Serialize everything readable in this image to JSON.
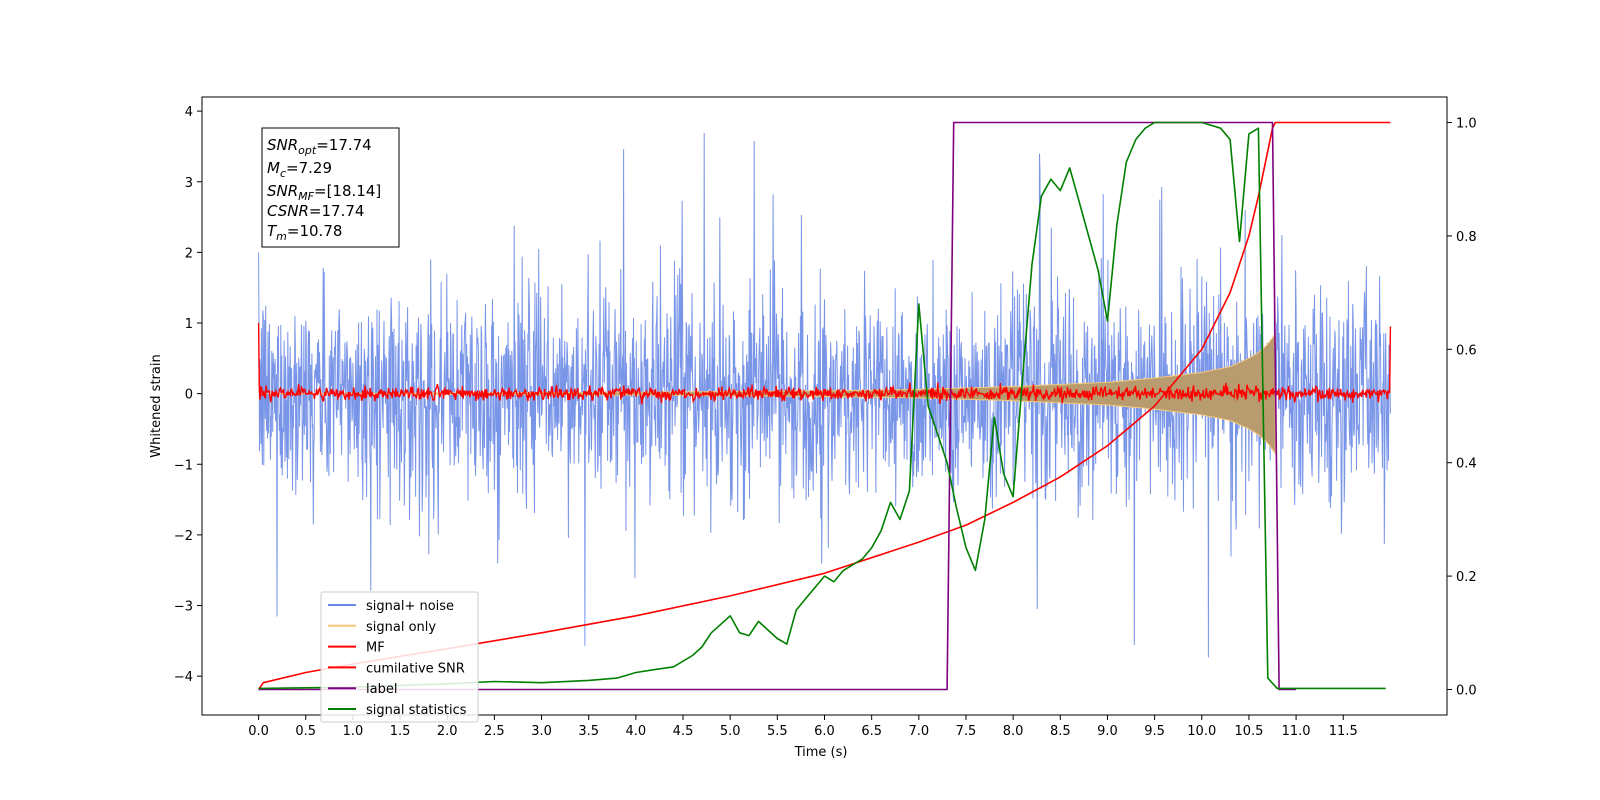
{
  "chart_data": {
    "type": "line",
    "xlabel": "Time (s)",
    "ylabel": "Whitened strain",
    "xlim": [
      -0.6,
      12.6
    ],
    "ylim": [
      -4.55,
      4.2
    ],
    "y2lim": [
      -0.045,
      1.045
    ],
    "x_ticks": [
      "0.0",
      "0.5",
      "1.0",
      "1.5",
      "2.0",
      "2.5",
      "3.0",
      "3.5",
      "4.0",
      "4.5",
      "5.0",
      "5.5",
      "6.0",
      "6.5",
      "7.0",
      "7.5",
      "8.0",
      "8.5",
      "9.0",
      "9.5",
      "10.0",
      "10.5",
      "11.0",
      "11.5"
    ],
    "y_ticks": [
      "−4",
      "−3",
      "−2",
      "−1",
      "0",
      "1",
      "2",
      "3",
      "4"
    ],
    "y2_ticks": [
      "0.0",
      "0.2",
      "0.4",
      "0.6",
      "0.8",
      "1.0"
    ],
    "annotation": {
      "snr_opt": {
        "label": "SNR",
        "sub": "opt",
        "value": "=17.74"
      },
      "mc": {
        "label": "M",
        "sub": "c",
        "value": "=7.29"
      },
      "snr_mf": {
        "label": "SNR",
        "sub": "MF",
        "value": "=[18.14]"
      },
      "csnr": {
        "label": "CSNR",
        "value": "=17.74"
      },
      "tm": {
        "label": "T",
        "sub": "m",
        "value": "=10.78"
      }
    },
    "series": [
      {
        "name": "signal+ noise",
        "color": "#6a89e6",
        "axis": "left",
        "noise_amplitude": 1.0,
        "x_range": [
          0.0,
          12.0
        ]
      },
      {
        "name": "signal only",
        "color": "#f5c97a",
        "axis": "left",
        "envelope_x": [
          0.0,
          4.0,
          6.0,
          7.0,
          8.0,
          9.0,
          9.5,
          10.0,
          10.3,
          10.5,
          10.6,
          10.7,
          10.78
        ],
        "envelope_y": [
          0.0,
          0.02,
          0.04,
          0.06,
          0.1,
          0.16,
          0.22,
          0.3,
          0.38,
          0.5,
          0.58,
          0.7,
          0.85
        ]
      },
      {
        "name": "MF",
        "color": "#ff0000",
        "axis": "left",
        "noise_amplitude": 0.08,
        "x_range": [
          0.0,
          12.0
        ]
      },
      {
        "name": "cumilative SNR",
        "color": "#ff0000",
        "axis": "right",
        "x": [
          0.0,
          0.05,
          0.5,
          1.0,
          2.0,
          3.0,
          4.0,
          5.0,
          6.0,
          7.0,
          7.5,
          8.0,
          8.5,
          9.0,
          9.5,
          10.0,
          10.3,
          10.5,
          10.6,
          10.7,
          10.75,
          10.78,
          12.0
        ],
        "y": [
          0.0,
          0.012,
          0.03,
          0.045,
          0.072,
          0.1,
          0.13,
          0.165,
          0.205,
          0.26,
          0.29,
          0.33,
          0.375,
          0.43,
          0.5,
          0.6,
          0.7,
          0.8,
          0.87,
          0.95,
          0.99,
          1.0,
          1.0
        ]
      },
      {
        "name": "label",
        "color": "#800080",
        "axis": "right",
        "x": [
          0.0,
          7.3,
          7.37,
          10.75,
          10.82,
          11.0
        ],
        "y": [
          0.0,
          0.0,
          1.0,
          1.0,
          0.0,
          0.0
        ]
      },
      {
        "name": "signal statistics",
        "color": "#008000",
        "axis": "right",
        "x": [
          0.0,
          1.0,
          2.0,
          2.5,
          3.0,
          3.5,
          3.8,
          4.0,
          4.2,
          4.4,
          4.6,
          4.7,
          4.8,
          4.9,
          5.0,
          5.1,
          5.2,
          5.3,
          5.4,
          5.5,
          5.6,
          5.7,
          5.8,
          6.0,
          6.1,
          6.2,
          6.3,
          6.4,
          6.5,
          6.6,
          6.7,
          6.8,
          6.9,
          7.0,
          7.1,
          7.2,
          7.3,
          7.4,
          7.5,
          7.6,
          7.7,
          7.8,
          7.9,
          8.0,
          8.1,
          8.2,
          8.3,
          8.4,
          8.5,
          8.6,
          8.7,
          8.8,
          8.9,
          9.0,
          9.1,
          9.2,
          9.3,
          9.4,
          9.5,
          9.6,
          9.8,
          10.0,
          10.2,
          10.3,
          10.4,
          10.5,
          10.6,
          10.7,
          10.8,
          10.9,
          11.0,
          11.5,
          11.95
        ],
        "y": [
          0.002,
          0.004,
          0.01,
          0.014,
          0.012,
          0.016,
          0.02,
          0.03,
          0.035,
          0.04,
          0.06,
          0.075,
          0.1,
          0.115,
          0.13,
          0.1,
          0.095,
          0.12,
          0.105,
          0.09,
          0.08,
          0.14,
          0.16,
          0.2,
          0.19,
          0.21,
          0.22,
          0.23,
          0.25,
          0.28,
          0.33,
          0.3,
          0.35,
          0.68,
          0.5,
          0.45,
          0.4,
          0.32,
          0.25,
          0.21,
          0.3,
          0.48,
          0.38,
          0.34,
          0.55,
          0.75,
          0.87,
          0.9,
          0.88,
          0.92,
          0.86,
          0.8,
          0.74,
          0.65,
          0.82,
          0.93,
          0.97,
          0.99,
          1.0,
          1.0,
          1.0,
          1.0,
          0.99,
          0.97,
          0.79,
          0.98,
          0.99,
          0.02,
          0.002,
          0.002,
          0.002,
          0.002,
          0.002
        ]
      }
    ],
    "legend": {
      "placement": "lower-left",
      "entries": [
        "signal+ noise",
        "signal only",
        "MF",
        "cumilative SNR",
        "label",
        "signal statistics"
      ]
    }
  }
}
